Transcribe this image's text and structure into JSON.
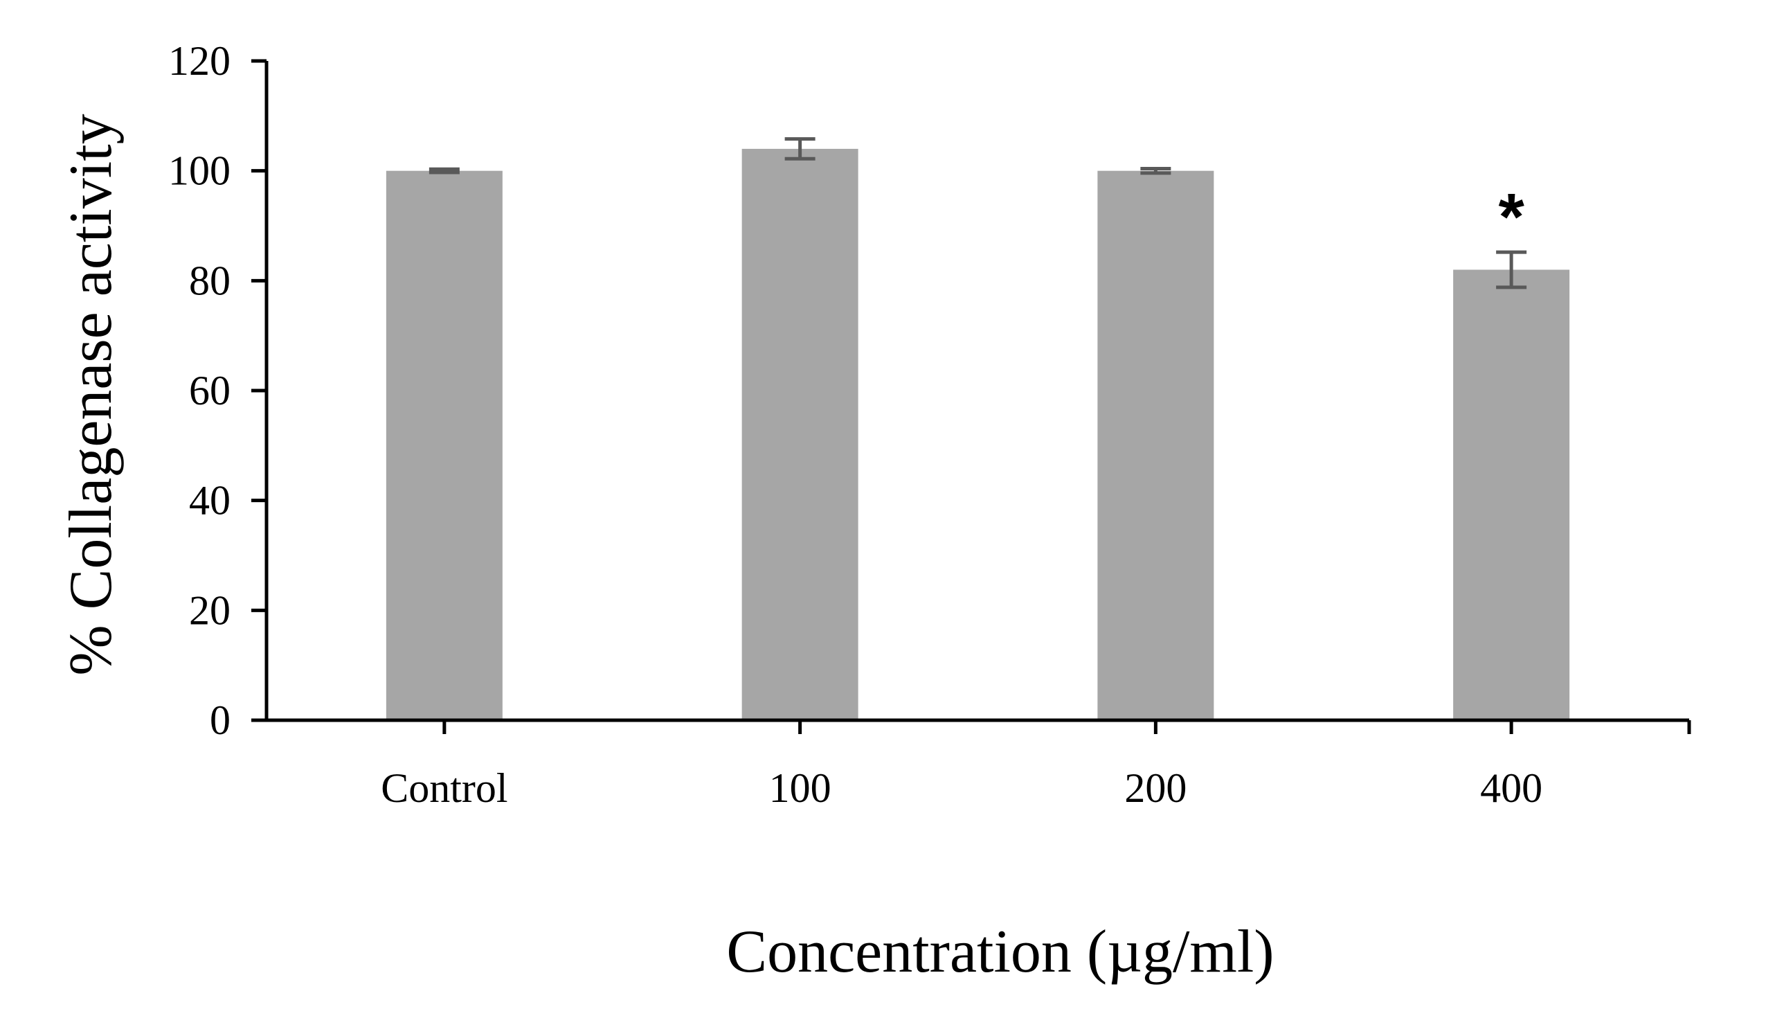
{
  "chart_data": {
    "type": "bar",
    "title": "",
    "xlabel": "Concentration (µg/ml)",
    "ylabel": "% Collagenase activity",
    "categories": [
      "Control",
      "100",
      "200",
      "400"
    ],
    "values": [
      100,
      104,
      100,
      82
    ],
    "errors": [
      0.3,
      1.8,
      0.4,
      3.2
    ],
    "significance": [
      "",
      "",
      "",
      "*"
    ],
    "ylim": [
      0,
      120
    ],
    "yticks": [
      0,
      20,
      40,
      60,
      80,
      100,
      120
    ],
    "grid": false,
    "bar_color": "#a6a6a6",
    "error_bar_color": "#595959",
    "axis_color": "#000000"
  }
}
